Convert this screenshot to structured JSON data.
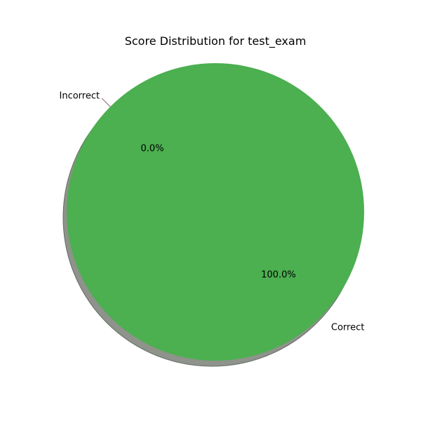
{
  "chart_data": {
    "type": "pie",
    "title": "Score Distribution for test_exam",
    "slices": [
      {
        "label": "Correct",
        "value": 100.0,
        "pct_label": "100.0%",
        "color": "#4caf50"
      },
      {
        "label": "Incorrect",
        "value": 0.0,
        "pct_label": "0.0%",
        "color": "#f44336"
      }
    ],
    "shadow": true,
    "legend": "none"
  }
}
